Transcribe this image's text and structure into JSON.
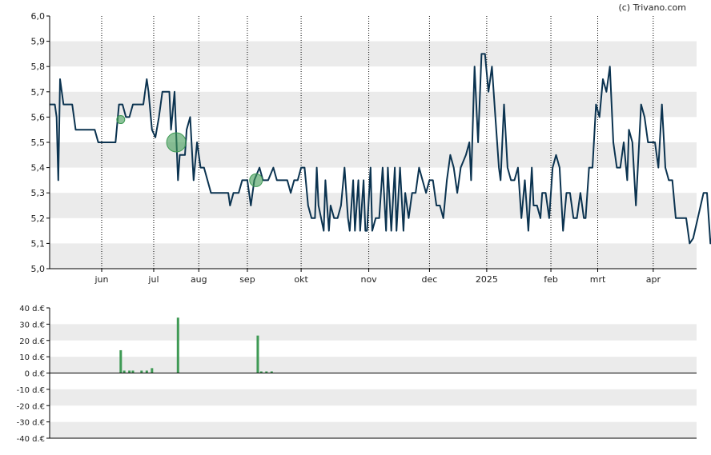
{
  "credit": "(c) Trivano.com",
  "colors": {
    "price_line": "#0b3350",
    "bubble": "#3f9a55",
    "volume_bar": "#3f9a55",
    "band": "#ebebeb",
    "axis": "#000000",
    "grid_dotted": "#000000"
  },
  "chart_data": [
    {
      "type": "line",
      "grid": "dotted vertical at month labels, alternating horizontal bands",
      "ylim": [
        5.0,
        6.0
      ],
      "y_ticks": [
        "6,0",
        "5,9",
        "5,8",
        "5,7",
        "5,6",
        "5,5",
        "5,4",
        "5,3",
        "5,2",
        "5,1",
        "5,0"
      ],
      "x_ticks": [
        {
          "label": "jun",
          "x": 27
        },
        {
          "label": "jul",
          "x": 57
        },
        {
          "label": "aug",
          "x": 83
        },
        {
          "label": "sep",
          "x": 111
        },
        {
          "label": "okt",
          "x": 142
        },
        {
          "label": "nov",
          "x": 181
        },
        {
          "label": "dec",
          "x": 216
        },
        {
          "label": "2025",
          "x": 249
        },
        {
          "label": "feb",
          "x": 286
        },
        {
          "label": "mrt",
          "x": 313
        },
        {
          "label": "apr",
          "x": 345
        }
      ],
      "x_range": [
        -3,
        370
      ],
      "series": [
        {
          "values": [
            [
              -3,
              5.65
            ],
            [
              0,
              5.65
            ],
            [
              1,
              5.6
            ],
            [
              2,
              5.35
            ],
            [
              3,
              5.75
            ],
            [
              5,
              5.65
            ],
            [
              10,
              5.65
            ],
            [
              12,
              5.55
            ],
            [
              23,
              5.55
            ],
            [
              25,
              5.5
            ],
            [
              35,
              5.5
            ],
            [
              37,
              5.65
            ],
            [
              39,
              5.65
            ],
            [
              41,
              5.6
            ],
            [
              43,
              5.6
            ],
            [
              45,
              5.65
            ],
            [
              51,
              5.65
            ],
            [
              53,
              5.75
            ],
            [
              54,
              5.7
            ],
            [
              56,
              5.55
            ],
            [
              58,
              5.52
            ],
            [
              60,
              5.6
            ],
            [
              62,
              5.7
            ],
            [
              66,
              5.7
            ],
            [
              67,
              5.55
            ],
            [
              69,
              5.7
            ],
            [
              71,
              5.35
            ],
            [
              72,
              5.45
            ],
            [
              75,
              5.45
            ],
            [
              76,
              5.55
            ],
            [
              78,
              5.6
            ],
            [
              80,
              5.35
            ],
            [
              82,
              5.5
            ],
            [
              84,
              5.4
            ],
            [
              86,
              5.4
            ],
            [
              90,
              5.3
            ],
            [
              100,
              5.3
            ],
            [
              101,
              5.25
            ],
            [
              103,
              5.3
            ],
            [
              106,
              5.3
            ],
            [
              108,
              5.35
            ],
            [
              111,
              5.35
            ],
            [
              113,
              5.25
            ],
            [
              115,
              5.35
            ],
            [
              118,
              5.4
            ],
            [
              120,
              5.35
            ],
            [
              123,
              5.35
            ],
            [
              126,
              5.4
            ],
            [
              128,
              5.35
            ],
            [
              134,
              5.35
            ],
            [
              136,
              5.3
            ],
            [
              138,
              5.35
            ],
            [
              140,
              5.35
            ],
            [
              142,
              5.4
            ],
            [
              144,
              5.4
            ],
            [
              146,
              5.25
            ],
            [
              148,
              5.2
            ],
            [
              150,
              5.2
            ],
            [
              151,
              5.4
            ],
            [
              152,
              5.25
            ],
            [
              155,
              5.15
            ],
            [
              156,
              5.35
            ],
            [
              157,
              5.25
            ],
            [
              158,
              5.15
            ],
            [
              159,
              5.25
            ],
            [
              161,
              5.2
            ],
            [
              163,
              5.2
            ],
            [
              165,
              5.25
            ],
            [
              167,
              5.4
            ],
            [
              169,
              5.2
            ],
            [
              170,
              5.15
            ],
            [
              172,
              5.35
            ],
            [
              173,
              5.15
            ],
            [
              175,
              5.35
            ],
            [
              176,
              5.15
            ],
            [
              178,
              5.35
            ],
            [
              179,
              5.15
            ],
            [
              180,
              5.15
            ],
            [
              182,
              5.4
            ],
            [
              183,
              5.15
            ],
            [
              185,
              5.2
            ],
            [
              187,
              5.2
            ],
            [
              189,
              5.4
            ],
            [
              191,
              5.15
            ],
            [
              192,
              5.4
            ],
            [
              194,
              5.15
            ],
            [
              196,
              5.4
            ],
            [
              197,
              5.15
            ],
            [
              199,
              5.4
            ],
            [
              201,
              5.15
            ],
            [
              202,
              5.3
            ],
            [
              204,
              5.2
            ],
            [
              206,
              5.3
            ],
            [
              208,
              5.3
            ],
            [
              210,
              5.4
            ],
            [
              212,
              5.35
            ],
            [
              214,
              5.3
            ],
            [
              216,
              5.35
            ],
            [
              218,
              5.35
            ],
            [
              220,
              5.25
            ],
            [
              222,
              5.25
            ],
            [
              224,
              5.2
            ],
            [
              226,
              5.35
            ],
            [
              228,
              5.45
            ],
            [
              230,
              5.4
            ],
            [
              232,
              5.3
            ],
            [
              234,
              5.4
            ],
            [
              237,
              5.45
            ],
            [
              239,
              5.5
            ],
            [
              240,
              5.35
            ],
            [
              242,
              5.8
            ],
            [
              244,
              5.5
            ],
            [
              246,
              5.85
            ],
            [
              248,
              5.85
            ],
            [
              250,
              5.7
            ],
            [
              252,
              5.8
            ],
            [
              254,
              5.6
            ],
            [
              256,
              5.4
            ],
            [
              257,
              5.35
            ],
            [
              259,
              5.65
            ],
            [
              261,
              5.4
            ],
            [
              263,
              5.35
            ],
            [
              265,
              5.35
            ],
            [
              267,
              5.4
            ],
            [
              269,
              5.2
            ],
            [
              271,
              5.35
            ],
            [
              273,
              5.15
            ],
            [
              275,
              5.4
            ],
            [
              276,
              5.25
            ],
            [
              278,
              5.25
            ],
            [
              280,
              5.2
            ],
            [
              281,
              5.3
            ],
            [
              283,
              5.3
            ],
            [
              285,
              5.2
            ],
            [
              287,
              5.4
            ],
            [
              289,
              5.45
            ],
            [
              291,
              5.4
            ],
            [
              293,
              5.15
            ],
            [
              295,
              5.3
            ],
            [
              297,
              5.3
            ],
            [
              299,
              5.2
            ],
            [
              301,
              5.2
            ],
            [
              303,
              5.3
            ],
            [
              305,
              5.2
            ],
            [
              306,
              5.2
            ],
            [
              308,
              5.4
            ],
            [
              310,
              5.4
            ],
            [
              312,
              5.65
            ],
            [
              314,
              5.6
            ],
            [
              316,
              5.75
            ],
            [
              318,
              5.7
            ],
            [
              320,
              5.8
            ],
            [
              322,
              5.5
            ],
            [
              324,
              5.4
            ],
            [
              326,
              5.4
            ],
            [
              328,
              5.5
            ],
            [
              330,
              5.35
            ],
            [
              331,
              5.55
            ],
            [
              333,
              5.5
            ],
            [
              335,
              5.25
            ],
            [
              338,
              5.65
            ],
            [
              340,
              5.6
            ],
            [
              342,
              5.5
            ],
            [
              346,
              5.5
            ],
            [
              348,
              5.4
            ],
            [
              350,
              5.65
            ],
            [
              352,
              5.4
            ],
            [
              354,
              5.35
            ],
            [
              356,
              5.35
            ],
            [
              358,
              5.2
            ],
            [
              364,
              5.2
            ],
            [
              366,
              5.1
            ],
            [
              368,
              5.12
            ],
            [
              374,
              5.3
            ],
            [
              376,
              5.3
            ],
            [
              378,
              5.1
            ],
            [
              380,
              5.15
            ],
            [
              382,
              5.15
            ],
            [
              384,
              5.65
            ]
          ]
        }
      ],
      "bubbles": [
        {
          "x": 38,
          "y": 5.59,
          "size": "small"
        },
        {
          "x": 70,
          "y": 5.5,
          "size": "large"
        },
        {
          "x": 116,
          "y": 5.35,
          "size": "medium"
        }
      ]
    },
    {
      "type": "bar",
      "ylim": [
        -40,
        40
      ],
      "y_ticks": [
        "40 d.€",
        "30 d.€",
        "20 d.€",
        "10 d.€",
        "0 d.€",
        "-10 d.€",
        "-20 d.€",
        "-30 d.€",
        "-40 d.€"
      ],
      "series": [
        {
          "values": [
            [
              38,
              14
            ],
            [
              40,
              1.5
            ],
            [
              43,
              1.5
            ],
            [
              45,
              1.5
            ],
            [
              50,
              1.5
            ],
            [
              53,
              1.5
            ],
            [
              56,
              3
            ],
            [
              71,
              34
            ],
            [
              117,
              23
            ],
            [
              119,
              1
            ],
            [
              122,
              1
            ],
            [
              125,
              1
            ]
          ]
        }
      ]
    }
  ]
}
